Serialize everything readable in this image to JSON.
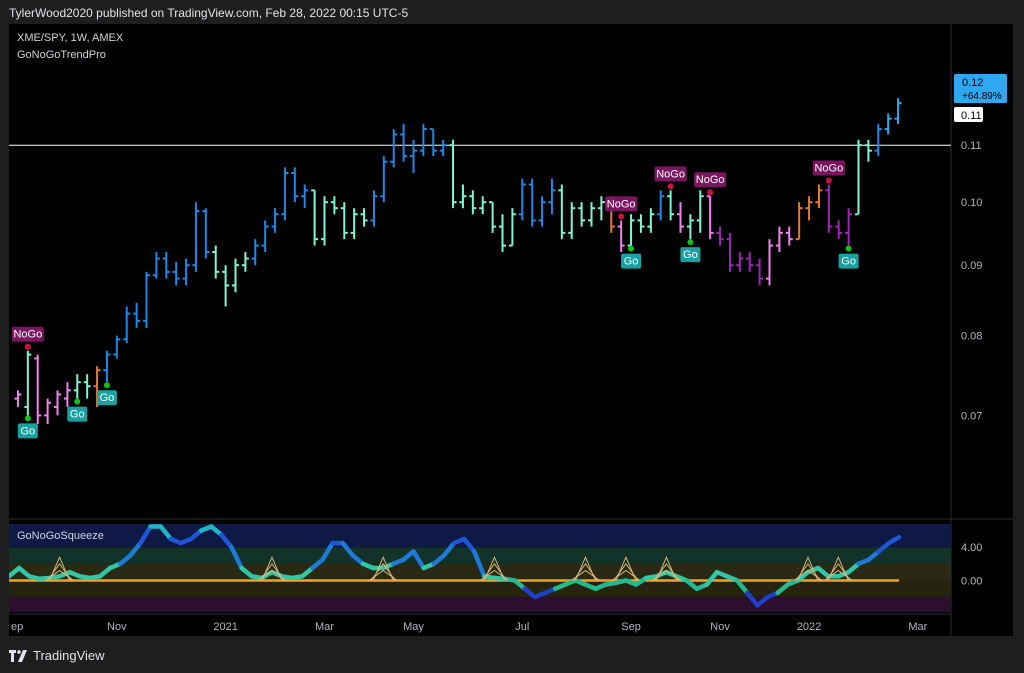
{
  "header": {
    "text": "TylerWood2020 published on TradingView.com, Feb 28, 2022 00:15 UTC-5"
  },
  "chart": {
    "symbol": "XME/SPY, 1W, AMEX",
    "indicator": "GoNoGoTrendPro",
    "last_price": "0.12",
    "last_change": "+64.89%",
    "hline_label": "0.11"
  },
  "oscillator": {
    "name": "GoNoGoSqueeze"
  },
  "footer": {
    "brand": "TradingView"
  },
  "colors": {
    "bright_blue": "#2ea8f0",
    "blue": "#1e88e5",
    "aqua": "#7ff5d5",
    "pink": "#ee82ee",
    "purple": "#9c27b0",
    "orange": "#e07b30",
    "nogo_badge": "#7b1560",
    "go_badge": "#17a2a2",
    "squeeze_line": "#f7a21b"
  },
  "chart_data": [
    {
      "type": "bar",
      "title": "XME/SPY, 1W, AMEX",
      "subtitle": "GoNoGoTrendPro",
      "x_ticks": [
        "ep",
        "Nov",
        "2021",
        "Mar",
        "May",
        "Jul",
        "Sep",
        "Nov",
        "2022",
        "Mar"
      ],
      "y_ticks": [
        0.07,
        0.08,
        0.09,
        0.1,
        0.11,
        0.12
      ],
      "ylim": [
        0.064,
        0.126
      ],
      "horizontal_line": 0.11,
      "last_value": 0.12,
      "last_change_pct": 64.89,
      "series": [
        {
          "values": [
            [
              0.072,
              0.073,
              0.071,
              0.0725,
              "pink"
            ],
            [
              0.071,
              0.078,
              0.07,
              0.0775,
              "aqua"
            ],
            [
              0.077,
              0.0775,
              0.069,
              0.07,
              "pink"
            ],
            [
              0.07,
              0.072,
              0.069,
              0.0715,
              "pink"
            ],
            [
              0.071,
              0.073,
              0.07,
              0.0725,
              "pink"
            ],
            [
              0.072,
              0.074,
              0.071,
              0.073,
              "pink"
            ],
            [
              0.073,
              0.075,
              0.072,
              0.074,
              "aqua"
            ],
            [
              0.074,
              0.075,
              0.072,
              0.0735,
              "aqua"
            ],
            [
              0.0735,
              0.076,
              0.071,
              0.0755,
              "orange"
            ],
            [
              0.0755,
              0.078,
              0.074,
              0.0775,
              "blue"
            ],
            [
              0.0775,
              0.08,
              0.077,
              0.0795,
              "blue"
            ],
            [
              0.0795,
              0.084,
              0.079,
              0.083,
              "blue"
            ],
            [
              0.083,
              0.0845,
              0.081,
              0.082,
              "blue"
            ],
            [
              0.082,
              0.089,
              0.081,
              0.0885,
              "blue"
            ],
            [
              0.0885,
              0.092,
              0.088,
              0.091,
              "blue"
            ],
            [
              0.091,
              0.092,
              0.088,
              0.089,
              "blue"
            ],
            [
              0.089,
              0.0905,
              0.087,
              0.088,
              "blue"
            ],
            [
              0.088,
              0.091,
              0.087,
              0.09,
              "blue"
            ],
            [
              0.09,
              0.1,
              0.089,
              0.0985,
              "blue"
            ],
            [
              0.0985,
              0.099,
              0.091,
              0.092,
              "blue"
            ],
            [
              0.092,
              0.093,
              0.088,
              0.089,
              "aqua"
            ],
            [
              0.089,
              0.09,
              0.084,
              0.087,
              "aqua"
            ],
            [
              0.087,
              0.091,
              0.086,
              0.09,
              "aqua"
            ],
            [
              0.09,
              0.092,
              0.089,
              0.091,
              "aqua"
            ],
            [
              0.091,
              0.094,
              0.09,
              0.093,
              "blue"
            ],
            [
              0.093,
              0.097,
              0.092,
              0.096,
              "blue"
            ],
            [
              0.096,
              0.099,
              0.095,
              0.098,
              "blue"
            ],
            [
              0.098,
              0.106,
              0.097,
              0.105,
              "blue"
            ],
            [
              0.105,
              0.106,
              0.1,
              0.101,
              "blue"
            ],
            [
              0.101,
              0.103,
              0.099,
              0.102,
              "blue"
            ],
            [
              0.102,
              0.102,
              0.093,
              0.094,
              "aqua"
            ],
            [
              0.094,
              0.101,
              0.093,
              0.1,
              "aqua"
            ],
            [
              0.1,
              0.101,
              0.098,
              0.099,
              "aqua"
            ],
            [
              0.099,
              0.1,
              0.094,
              0.095,
              "aqua"
            ],
            [
              0.095,
              0.099,
              0.094,
              0.098,
              "aqua"
            ],
            [
              0.098,
              0.099,
              0.096,
              0.097,
              "aqua"
            ],
            [
              0.097,
              0.102,
              0.096,
              0.101,
              "blue"
            ],
            [
              0.101,
              0.108,
              0.1,
              0.107,
              "blue"
            ],
            [
              0.107,
              0.113,
              0.106,
              0.112,
              "blue"
            ],
            [
              0.112,
              0.114,
              0.107,
              0.108,
              "blue"
            ],
            [
              0.108,
              0.111,
              0.105,
              0.109,
              "blue"
            ],
            [
              0.109,
              0.114,
              0.108,
              0.113,
              "blue"
            ],
            [
              0.113,
              0.113,
              0.108,
              0.109,
              "blue"
            ],
            [
              0.109,
              0.111,
              0.108,
              0.11,
              "blue"
            ],
            [
              0.11,
              0.111,
              0.099,
              0.1,
              "aqua"
            ],
            [
              0.1,
              0.103,
              0.099,
              0.101,
              "aqua"
            ],
            [
              0.101,
              0.102,
              0.098,
              0.099,
              "aqua"
            ],
            [
              0.099,
              0.101,
              0.098,
              0.1,
              "aqua"
            ],
            [
              0.1,
              0.1,
              0.095,
              0.096,
              "aqua"
            ],
            [
              0.096,
              0.098,
              0.092,
              0.093,
              "aqua"
            ],
            [
              0.093,
              0.099,
              0.093,
              0.098,
              "aqua"
            ],
            [
              0.098,
              0.104,
              0.097,
              0.103,
              "blue"
            ],
            [
              0.103,
              0.104,
              0.096,
              0.097,
              "blue"
            ],
            [
              0.097,
              0.101,
              0.096,
              0.1,
              "blue"
            ],
            [
              0.1,
              0.104,
              0.098,
              0.102,
              "blue"
            ],
            [
              0.102,
              0.103,
              0.094,
              0.095,
              "aqua"
            ],
            [
              0.095,
              0.1,
              0.094,
              0.099,
              "aqua"
            ],
            [
              0.099,
              0.1,
              0.096,
              0.097,
              "aqua"
            ],
            [
              0.097,
              0.1,
              0.096,
              0.099,
              "aqua"
            ],
            [
              0.099,
              0.101,
              0.097,
              0.1,
              "aqua"
            ],
            [
              0.1,
              0.101,
              0.095,
              0.096,
              "orange"
            ],
            [
              0.096,
              0.097,
              0.092,
              0.093,
              "pink"
            ],
            [
              0.093,
              0.098,
              0.093,
              0.097,
              "aqua"
            ],
            [
              0.097,
              0.098,
              0.095,
              0.096,
              "aqua"
            ],
            [
              0.096,
              0.099,
              0.095,
              0.098,
              "aqua"
            ],
            [
              0.098,
              0.102,
              0.097,
              0.101,
              "blue"
            ],
            [
              0.101,
              0.102,
              0.097,
              0.098,
              "aqua"
            ],
            [
              0.098,
              0.1,
              0.095,
              0.096,
              "pink"
            ],
            [
              0.096,
              0.098,
              0.094,
              0.097,
              "aqua"
            ],
            [
              0.097,
              0.102,
              0.095,
              0.101,
              "aqua"
            ],
            [
              0.101,
              0.101,
              0.094,
              0.095,
              "pink"
            ],
            [
              0.095,
              0.096,
              0.093,
              0.094,
              "purple"
            ],
            [
              0.094,
              0.095,
              0.089,
              0.09,
              "purple"
            ],
            [
              0.09,
              0.092,
              0.089,
              0.091,
              "purple"
            ],
            [
              0.091,
              0.092,
              0.089,
              0.09,
              "purple"
            ],
            [
              0.09,
              0.091,
              0.087,
              0.088,
              "purple"
            ],
            [
              0.088,
              0.094,
              0.087,
              0.093,
              "pink"
            ],
            [
              0.093,
              0.096,
              0.092,
              0.095,
              "pink"
            ],
            [
              0.095,
              0.096,
              0.093,
              0.094,
              "pink"
            ],
            [
              0.094,
              0.1,
              0.094,
              0.099,
              "orange"
            ],
            [
              0.099,
              0.101,
              0.097,
              0.1,
              "orange"
            ],
            [
              0.1,
              0.103,
              0.099,
              0.102,
              "orange"
            ],
            [
              0.102,
              0.103,
              0.095,
              0.096,
              "purple"
            ],
            [
              0.096,
              0.097,
              0.094,
              0.095,
              "purple"
            ],
            [
              0.095,
              0.099,
              0.093,
              0.098,
              "purple"
            ],
            [
              0.098,
              0.111,
              0.098,
              0.11,
              "aqua"
            ],
            [
              0.11,
              0.111,
              0.107,
              0.109,
              "aqua"
            ],
            [
              0.109,
              0.114,
              0.108,
              0.113,
              "blue"
            ],
            [
              0.113,
              0.116,
              0.112,
              0.115,
              "bright_blue"
            ],
            [
              0.115,
              0.119,
              0.114,
              0.118,
              "bright_blue"
            ]
          ]
        }
      ],
      "signals": [
        {
          "index": 1,
          "label": "NoGo",
          "position": "above"
        },
        {
          "index": 1,
          "label": "Go",
          "position": "below"
        },
        {
          "index": 6,
          "label": "Go",
          "position": "below"
        },
        {
          "index": 9,
          "label": "Go",
          "position": "below"
        },
        {
          "index": 61,
          "label": "NoGo",
          "position": "above"
        },
        {
          "index": 62,
          "label": "Go",
          "position": "below"
        },
        {
          "index": 66,
          "label": "NoGo",
          "position": "above"
        },
        {
          "index": 68,
          "label": "Go",
          "position": "below"
        },
        {
          "index": 70,
          "label": "NoGo",
          "position": "above"
        },
        {
          "index": 82,
          "label": "NoGo",
          "position": "above"
        },
        {
          "index": 84,
          "label": "Go",
          "position": "below"
        }
      ]
    },
    {
      "type": "line",
      "title": "GoNoGoSqueeze",
      "y_ticks": [
        0.0,
        4.0
      ],
      "ylim": [
        -3.8,
        6.8
      ],
      "zero_line": 0.0,
      "values": [
        0.5,
        1.5,
        0.5,
        0.2,
        0.3,
        0.5,
        1.0,
        0.5,
        0.3,
        0.5,
        1.5,
        2.0,
        3.0,
        4.5,
        6.5,
        6.5,
        5.0,
        4.5,
        5.0,
        6.0,
        6.5,
        5.5,
        4.0,
        1.5,
        0.5,
        0.3,
        1.0,
        0.5,
        0.3,
        0.5,
        1.5,
        2.5,
        4.5,
        4.5,
        3.0,
        2.0,
        1.5,
        1.5,
        2.0,
        2.5,
        3.5,
        1.5,
        2.0,
        3.0,
        4.5,
        5.0,
        3.5,
        0.5,
        0.3,
        0.2,
        0.0,
        -1.0,
        -2.0,
        -1.5,
        -1.0,
        -0.5,
        0.0,
        -0.5,
        -1.0,
        -0.5,
        -0.3,
        0.0,
        -0.5,
        0.3,
        0.5,
        1.0,
        0.5,
        0.0,
        -1.0,
        -0.5,
        1.0,
        0.5,
        0.0,
        -1.5,
        -3.0,
        -2.0,
        -1.5,
        -0.5,
        0.0,
        1.0,
        1.5,
        0.5,
        0.5,
        1.0,
        2.0,
        2.5,
        3.5,
        4.5,
        5.2
      ]
    }
  ]
}
